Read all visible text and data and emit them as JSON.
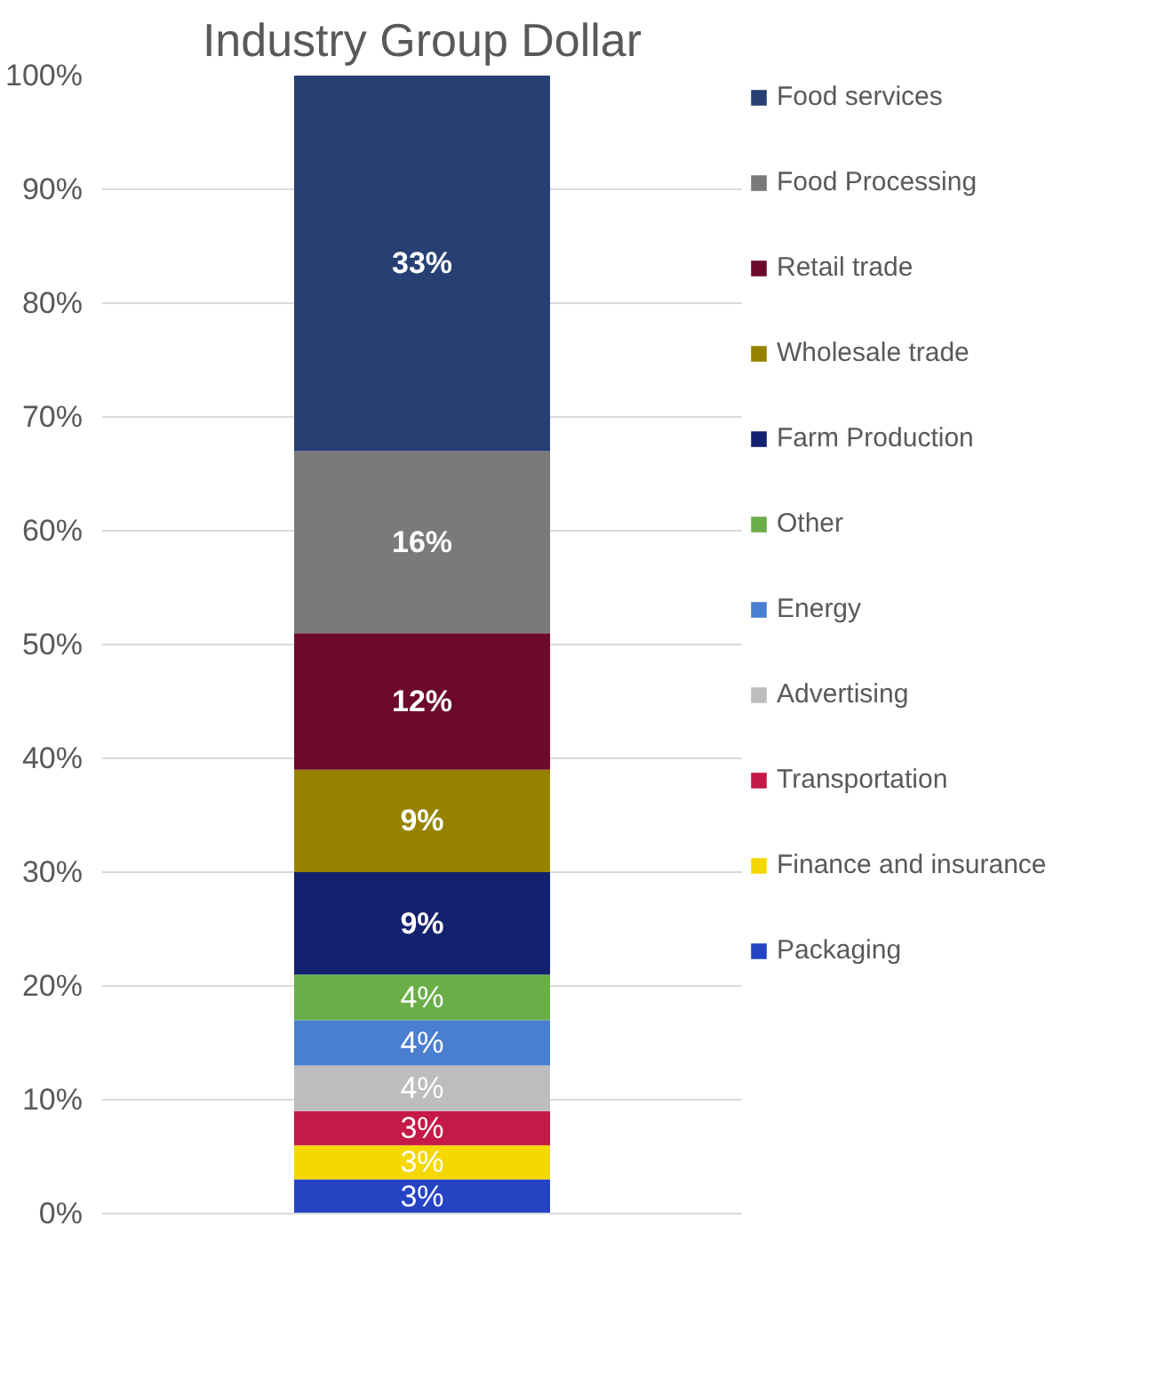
{
  "chart_data": {
    "type": "bar",
    "title": "Industry Group Dollar",
    "stacked": true,
    "categories": [
      null
    ],
    "series": [
      {
        "name": "Packaging",
        "color": "#2444c4",
        "values": [
          3
        ],
        "value_labels": [
          "3%"
        ]
      },
      {
        "name": "Finance and insurance",
        "color": "#f5d800",
        "values": [
          3
        ],
        "value_labels": [
          "3%"
        ]
      },
      {
        "name": "Transportation",
        "color": "#c41a48",
        "values": [
          3
        ],
        "value_labels": [
          "3%"
        ]
      },
      {
        "name": "Advertising",
        "color": "#bdbdbd",
        "values": [
          4
        ],
        "value_labels": [
          "4%"
        ]
      },
      {
        "name": "Energy",
        "color": "#4a7ed0",
        "values": [
          4
        ],
        "value_labels": [
          "4%"
        ]
      },
      {
        "name": "Other",
        "color": "#6aae48",
        "values": [
          4
        ],
        "value_labels": [
          "4%"
        ]
      },
      {
        "name": "Farm Production",
        "color": "#14216e",
        "values": [
          9
        ],
        "value_labels": [
          "9%"
        ]
      },
      {
        "name": "Wholesale trade",
        "color": "#978200",
        "values": [
          9
        ],
        "value_labels": [
          "9%"
        ]
      },
      {
        "name": "Retail trade",
        "color": "#6c0a2a",
        "values": [
          12
        ],
        "value_labels": [
          "12%"
        ]
      },
      {
        "name": "Food Processing",
        "color": "#7a7a7a",
        "values": [
          16
        ],
        "value_labels": [
          "16%"
        ]
      },
      {
        "name": "Food services",
        "color": "#273f73",
        "values": [
          33
        ],
        "value_labels": [
          "33%"
        ]
      }
    ],
    "ylim": [
      0,
      100
    ],
    "yticks": [
      {
        "value": 0,
        "label": "0%"
      },
      {
        "value": 10,
        "label": "10%"
      },
      {
        "value": 20,
        "label": "20%"
      },
      {
        "value": 30,
        "label": "30%"
      },
      {
        "value": 40,
        "label": "40%"
      },
      {
        "value": 50,
        "label": "50%"
      },
      {
        "value": 60,
        "label": "60%"
      },
      {
        "value": 70,
        "label": "70%"
      },
      {
        "value": 80,
        "label": "80%"
      },
      {
        "value": 90,
        "label": "90%"
      },
      {
        "value": 100,
        "label": "100%"
      }
    ],
    "grid": "y",
    "legend": "right",
    "tick_labels": "y"
  }
}
